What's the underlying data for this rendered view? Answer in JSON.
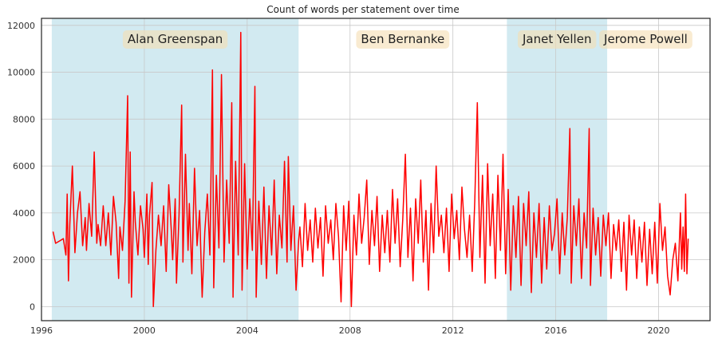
{
  "chart_data": {
    "type": "line",
    "title": "Count of words per statement over time",
    "xlabel": "",
    "ylabel": "",
    "xlim": [
      1996.0,
      2022.0
    ],
    "ylim": [
      -600,
      12300
    ],
    "x_ticks": [
      "1996",
      "2000",
      "2004",
      "2008",
      "2012",
      "2016",
      "2020"
    ],
    "y_ticks": [
      "0",
      "2000",
      "4000",
      "6000",
      "8000",
      "10000",
      "12000"
    ],
    "grid": true,
    "line_color": "#ff0000",
    "shade_color": "#add8e6",
    "label_box_color": "#f5deb3",
    "chairs": [
      {
        "name": "Alan Greenspan",
        "start": 1996.4,
        "end": 2006.0,
        "shaded": true
      },
      {
        "name": "Ben Bernanke",
        "start": 2006.0,
        "end": 2014.1,
        "shaded": false
      },
      {
        "name": "Janet Yellen",
        "start": 2014.1,
        "end": 2018.0,
        "shaded": true
      },
      {
        "name": "Jerome Powell",
        "start": 2018.0,
        "end": 2021.0,
        "shaded": false
      }
    ],
    "series": [
      {
        "points": [
          [
            1996.45,
            3200
          ],
          [
            1996.55,
            2700
          ],
          [
            1996.7,
            2800
          ],
          [
            1996.85,
            2900
          ],
          [
            1996.95,
            2200
          ],
          [
            1997.0,
            4800
          ],
          [
            1997.05,
            1100
          ],
          [
            1997.1,
            3500
          ],
          [
            1997.2,
            6000
          ],
          [
            1997.3,
            2300
          ],
          [
            1997.4,
            4000
          ],
          [
            1997.5,
            4900
          ],
          [
            1997.6,
            2600
          ],
          [
            1997.7,
            3800
          ],
          [
            1997.75,
            2400
          ],
          [
            1997.85,
            4400
          ],
          [
            1997.95,
            3000
          ],
          [
            1998.05,
            6600
          ],
          [
            1998.15,
            2700
          ],
          [
            1998.2,
            3500
          ],
          [
            1998.3,
            2600
          ],
          [
            1998.4,
            4300
          ],
          [
            1998.5,
            2600
          ],
          [
            1998.6,
            4000
          ],
          [
            1998.7,
            2200
          ],
          [
            1998.8,
            4700
          ],
          [
            1998.9,
            3600
          ],
          [
            1999.0,
            1200
          ],
          [
            1999.05,
            3400
          ],
          [
            1999.15,
            2400
          ],
          [
            1999.25,
            4500
          ],
          [
            1999.35,
            9000
          ],
          [
            1999.4,
            1000
          ],
          [
            1999.45,
            6600
          ],
          [
            1999.5,
            400
          ],
          [
            1999.6,
            4900
          ],
          [
            1999.65,
            3600
          ],
          [
            1999.75,
            2200
          ],
          [
            1999.85,
            4300
          ],
          [
            1999.95,
            3300
          ],
          [
            2000.0,
            2100
          ],
          [
            2000.1,
            4800
          ],
          [
            2000.15,
            1800
          ],
          [
            2000.2,
            3900
          ],
          [
            2000.3,
            5300
          ],
          [
            2000.35,
            0
          ],
          [
            2000.45,
            2400
          ],
          [
            2000.55,
            3900
          ],
          [
            2000.65,
            2600
          ],
          [
            2000.75,
            4300
          ],
          [
            2000.85,
            1500
          ],
          [
            2000.95,
            5200
          ],
          [
            2001.05,
            3200
          ],
          [
            2001.1,
            2000
          ],
          [
            2001.2,
            4600
          ],
          [
            2001.25,
            1000
          ],
          [
            2001.35,
            3900
          ],
          [
            2001.45,
            8600
          ],
          [
            2001.5,
            1900
          ],
          [
            2001.6,
            6500
          ],
          [
            2001.7,
            2400
          ],
          [
            2001.75,
            4400
          ],
          [
            2001.85,
            1400
          ],
          [
            2001.95,
            5900
          ],
          [
            2002.05,
            2600
          ],
          [
            2002.15,
            4100
          ],
          [
            2002.25,
            400
          ],
          [
            2002.35,
            3200
          ],
          [
            2002.45,
            4800
          ],
          [
            2002.55,
            2200
          ],
          [
            2002.65,
            10100
          ],
          [
            2002.7,
            800
          ],
          [
            2002.8,
            5600
          ],
          [
            2002.9,
            2500
          ],
          [
            2003.0,
            9900
          ],
          [
            2003.1,
            1900
          ],
          [
            2003.2,
            5400
          ],
          [
            2003.3,
            2700
          ],
          [
            2003.4,
            8700
          ],
          [
            2003.45,
            400
          ],
          [
            2003.55,
            6200
          ],
          [
            2003.65,
            2200
          ],
          [
            2003.75,
            11700
          ],
          [
            2003.8,
            700
          ],
          [
            2003.9,
            6100
          ],
          [
            2004.0,
            1600
          ],
          [
            2004.1,
            4600
          ],
          [
            2004.2,
            2400
          ],
          [
            2004.3,
            9400
          ],
          [
            2004.35,
            400
          ],
          [
            2004.45,
            4500
          ],
          [
            2004.55,
            1800
          ],
          [
            2004.65,
            5100
          ],
          [
            2004.75,
            1200
          ],
          [
            2004.85,
            4300
          ],
          [
            2004.95,
            2200
          ],
          [
            2005.05,
            5400
          ],
          [
            2005.15,
            1400
          ],
          [
            2005.25,
            3900
          ],
          [
            2005.35,
            2500
          ],
          [
            2005.45,
            6200
          ],
          [
            2005.55,
            1900
          ],
          [
            2005.6,
            6400
          ],
          [
            2005.7,
            2400
          ],
          [
            2005.8,
            4300
          ],
          [
            2005.9,
            700
          ],
          [
            2006.0,
            2800
          ],
          [
            2006.05,
            3400
          ],
          [
            2006.15,
            1700
          ],
          [
            2006.25,
            4400
          ],
          [
            2006.35,
            2400
          ],
          [
            2006.45,
            3700
          ],
          [
            2006.55,
            1900
          ],
          [
            2006.65,
            4200
          ],
          [
            2006.75,
            2500
          ],
          [
            2006.85,
            3800
          ],
          [
            2006.95,
            1300
          ],
          [
            2007.05,
            4300
          ],
          [
            2007.15,
            2700
          ],
          [
            2007.25,
            3700
          ],
          [
            2007.35,
            2000
          ],
          [
            2007.45,
            4400
          ],
          [
            2007.55,
            3000
          ],
          [
            2007.65,
            200
          ],
          [
            2007.75,
            4300
          ],
          [
            2007.85,
            2400
          ],
          [
            2007.95,
            4500
          ],
          [
            2008.05,
            0
          ],
          [
            2008.15,
            3900
          ],
          [
            2008.25,
            2200
          ],
          [
            2008.35,
            4800
          ],
          [
            2008.45,
            2700
          ],
          [
            2008.55,
            3800
          ],
          [
            2008.65,
            5400
          ],
          [
            2008.75,
            1800
          ],
          [
            2008.85,
            4100
          ],
          [
            2008.95,
            2600
          ],
          [
            2009.05,
            4700
          ],
          [
            2009.15,
            1500
          ],
          [
            2009.25,
            3900
          ],
          [
            2009.35,
            2300
          ],
          [
            2009.45,
            4100
          ],
          [
            2009.55,
            1900
          ],
          [
            2009.65,
            5000
          ],
          [
            2009.75,
            2700
          ],
          [
            2009.85,
            4600
          ],
          [
            2009.95,
            1700
          ],
          [
            2010.05,
            3700
          ],
          [
            2010.15,
            6500
          ],
          [
            2010.25,
            2100
          ],
          [
            2010.35,
            4200
          ],
          [
            2010.45,
            1100
          ],
          [
            2010.55,
            4600
          ],
          [
            2010.65,
            2700
          ],
          [
            2010.75,
            5400
          ],
          [
            2010.85,
            1900
          ],
          [
            2010.95,
            4100
          ],
          [
            2011.05,
            700
          ],
          [
            2011.15,
            4400
          ],
          [
            2011.25,
            2300
          ],
          [
            2011.35,
            6000
          ],
          [
            2011.45,
            3000
          ],
          [
            2011.55,
            3900
          ],
          [
            2011.65,
            2300
          ],
          [
            2011.75,
            4200
          ],
          [
            2011.85,
            1500
          ],
          [
            2011.95,
            4800
          ],
          [
            2012.05,
            2900
          ],
          [
            2012.15,
            4100
          ],
          [
            2012.25,
            2000
          ],
          [
            2012.35,
            5100
          ],
          [
            2012.45,
            3300
          ],
          [
            2012.55,
            2100
          ],
          [
            2012.65,
            3900
          ],
          [
            2012.75,
            1500
          ],
          [
            2012.85,
            4500
          ],
          [
            2012.95,
            8700
          ],
          [
            2013.05,
            2100
          ],
          [
            2013.15,
            5600
          ],
          [
            2013.25,
            1000
          ],
          [
            2013.35,
            6100
          ],
          [
            2013.45,
            2600
          ],
          [
            2013.55,
            4800
          ],
          [
            2013.65,
            1200
          ],
          [
            2013.75,
            5600
          ],
          [
            2013.85,
            2400
          ],
          [
            2013.95,
            6500
          ],
          [
            2014.05,
            1400
          ],
          [
            2014.15,
            5000
          ],
          [
            2014.25,
            700
          ],
          [
            2014.35,
            4300
          ],
          [
            2014.45,
            2100
          ],
          [
            2014.55,
            4700
          ],
          [
            2014.65,
            900
          ],
          [
            2014.75,
            4400
          ],
          [
            2014.85,
            2600
          ],
          [
            2014.95,
            4900
          ],
          [
            2015.05,
            600
          ],
          [
            2015.15,
            4000
          ],
          [
            2015.25,
            2100
          ],
          [
            2015.35,
            4400
          ],
          [
            2015.45,
            1000
          ],
          [
            2015.55,
            3800
          ],
          [
            2015.65,
            1600
          ],
          [
            2015.75,
            4300
          ],
          [
            2015.85,
            2400
          ],
          [
            2015.95,
            3100
          ],
          [
            2016.05,
            4600
          ],
          [
            2016.15,
            1400
          ],
          [
            2016.25,
            4000
          ],
          [
            2016.35,
            2200
          ],
          [
            2016.45,
            3800
          ],
          [
            2016.55,
            7600
          ],
          [
            2016.6,
            1000
          ],
          [
            2016.7,
            4300
          ],
          [
            2016.8,
            2600
          ],
          [
            2016.9,
            4600
          ],
          [
            2017.0,
            1200
          ],
          [
            2017.1,
            4000
          ],
          [
            2017.2,
            2500
          ],
          [
            2017.3,
            7600
          ],
          [
            2017.35,
            900
          ],
          [
            2017.45,
            4200
          ],
          [
            2017.55,
            2200
          ],
          [
            2017.65,
            3800
          ],
          [
            2017.75,
            1300
          ],
          [
            2017.85,
            3900
          ],
          [
            2017.95,
            2600
          ],
          [
            2018.05,
            4000
          ],
          [
            2018.15,
            1200
          ],
          [
            2018.25,
            3500
          ],
          [
            2018.35,
            2400
          ],
          [
            2018.45,
            3700
          ],
          [
            2018.55,
            1500
          ],
          [
            2018.65,
            3600
          ],
          [
            2018.75,
            700
          ],
          [
            2018.85,
            3900
          ],
          [
            2018.95,
            2200
          ],
          [
            2019.05,
            3700
          ],
          [
            2019.15,
            1200
          ],
          [
            2019.25,
            3400
          ],
          [
            2019.35,
            1900
          ],
          [
            2019.45,
            3600
          ],
          [
            2019.55,
            900
          ],
          [
            2019.65,
            3300
          ],
          [
            2019.75,
            1400
          ],
          [
            2019.85,
            3600
          ],
          [
            2019.95,
            1000
          ],
          [
            2020.05,
            4400
          ],
          [
            2020.15,
            2400
          ],
          [
            2020.25,
            3400
          ],
          [
            2020.35,
            1300
          ],
          [
            2020.45,
            500
          ],
          [
            2020.55,
            2000
          ],
          [
            2020.65,
            2700
          ],
          [
            2020.75,
            1100
          ],
          [
            2020.85,
            4000
          ],
          [
            2020.9,
            1600
          ],
          [
            2020.95,
            3400
          ],
          [
            2021.0,
            1500
          ],
          [
            2021.05,
            4800
          ],
          [
            2021.1,
            1400
          ],
          [
            2021.15,
            2900
          ]
        ]
      }
    ]
  }
}
